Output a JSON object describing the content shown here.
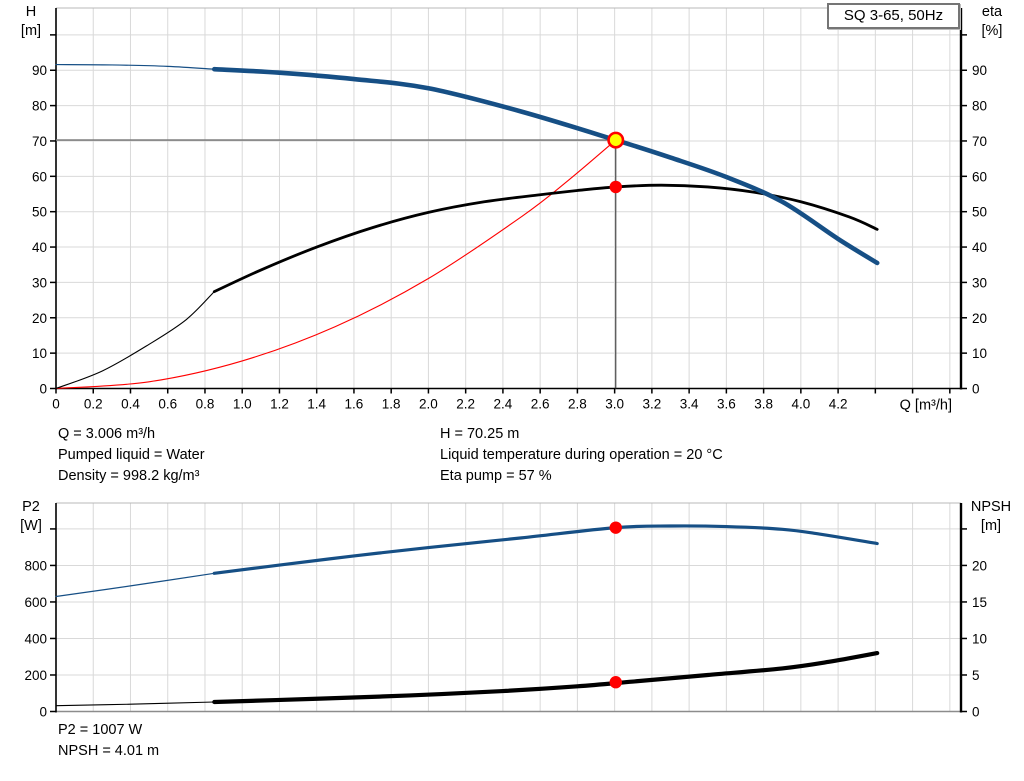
{
  "badge": {
    "label": "SQ 3-65, 50Hz"
  },
  "info_top": {
    "col1": [
      "Q = 3.006 m³/h",
      "Pumped liquid = Water",
      "Density = 998.2 kg/m³"
    ],
    "col2": [
      "H = 70.25 m",
      "Liquid temperature during operation = 20 °C",
      "Eta pump = 57 %"
    ]
  },
  "info_bottom": [
    "P2 = 1007 W",
    "NPSH = 4.01 m"
  ],
  "colors": {
    "curve_blue": "#164f85",
    "curve_black": "#000000",
    "system_red": "#ff0000",
    "marker_red": "#ff0000",
    "marker_yellow": "#ffff00",
    "grid": "#d9d9d9",
    "frame_top": "#b8b8b8",
    "axis": "#000000",
    "bottom_axis_gray": "#8c8c8c",
    "guide_h": "#808080",
    "guide_v": "#3a3a3a"
  },
  "chart_data": [
    {
      "id": "qh-eta-chart",
      "type": "line",
      "x_axis": {
        "label": "Q [m³/h]",
        "min": 0,
        "max": 4.86,
        "tick_step": 0.2,
        "show_ticks": true,
        "tick_labels": [
          "0",
          "0.2",
          "0.4",
          "0.6",
          "0.8",
          "1.0",
          "1.2",
          "1.4",
          "1.6",
          "1.8",
          "2.0",
          "2.2",
          "2.4",
          "2.6",
          "2.8",
          "3.0",
          "3.2",
          "3.4",
          "3.6",
          "3.8",
          "4.0",
          "4.2"
        ]
      },
      "left_axis": {
        "label_line1": "H",
        "label_line2": "[m]",
        "min": 0,
        "max": 107.6,
        "tick_step": 10,
        "ticks_to": 100,
        "tick_labels": [
          "0",
          "10",
          "20",
          "30",
          "40",
          "50",
          "60",
          "70",
          "80",
          "90"
        ]
      },
      "right_axis": {
        "label_line1": "eta",
        "label_line2": "[%]",
        "tick_step": 10,
        "ticks_to": 100,
        "scale": 1,
        "tick_labels": [
          "0",
          "10",
          "20",
          "30",
          "40",
          "50",
          "60",
          "70",
          "80",
          "90"
        ]
      },
      "series": [
        {
          "name": "system-curve",
          "axis": "left",
          "color": "#ff0000",
          "w_thin": 1.1,
          "w_thick": 1.1,
          "thin": [
            [
              0,
              0
            ],
            [
              0.5,
              1.9
            ],
            [
              1.0,
              7.8
            ],
            [
              1.5,
              17.5
            ],
            [
              2.0,
              31.1
            ],
            [
              2.5,
              48.6
            ],
            [
              2.75,
              58.8
            ],
            [
              3.006,
              70.25
            ]
          ],
          "thick": []
        },
        {
          "name": "eta-curve",
          "axis": "right",
          "color": "#000000",
          "w_thin": 1.1,
          "w_thick": 2.8,
          "thin": [
            [
              0,
              0
            ],
            [
              0.25,
              5
            ],
            [
              0.5,
              12.5
            ],
            [
              0.7,
              19.5
            ],
            [
              0.85,
              27.4
            ]
          ],
          "thick": [
            [
              0.85,
              27.4
            ],
            [
              1.1,
              33.5
            ],
            [
              1.4,
              40
            ],
            [
              1.7,
              45.5
            ],
            [
              2.0,
              49.8
            ],
            [
              2.3,
              52.8
            ],
            [
              2.6,
              54.8
            ],
            [
              2.8,
              56
            ],
            [
              3.006,
              57
            ],
            [
              3.25,
              57.5
            ],
            [
              3.5,
              57
            ],
            [
              3.75,
              55.5
            ],
            [
              4.0,
              52.8
            ],
            [
              4.26,
              48.5
            ],
            [
              4.41,
              45
            ]
          ]
        },
        {
          "name": "h-curve",
          "axis": "left",
          "color": "#164f85",
          "w_thin": 1.2,
          "w_thick": 4.6,
          "thin": [
            [
              0,
              91.6
            ],
            [
              0.3,
              91.5
            ],
            [
              0.6,
              91.1
            ],
            [
              0.85,
              90.3
            ]
          ],
          "thick": [
            [
              0.85,
              90.3
            ],
            [
              1.2,
              89.3
            ],
            [
              1.6,
              87.5
            ],
            [
              2.0,
              84.9
            ],
            [
              2.5,
              78.3
            ],
            [
              3.006,
              70.25
            ],
            [
              3.3,
              65.3
            ],
            [
              3.6,
              59.8
            ],
            [
              3.9,
              52.8
            ],
            [
              4.2,
              42.3
            ],
            [
              4.41,
              35.5
            ]
          ]
        }
      ],
      "guides": {
        "h_line": {
          "y": 70.25,
          "x_to": 3.006
        },
        "v_line": {
          "x": 3.006,
          "y_to": 70.25
        }
      },
      "markers": [
        {
          "name": "eta-point",
          "x": 3.006,
          "y": 57,
          "axis": "right",
          "style": "dot"
        },
        {
          "name": "duty-point",
          "x": 3.006,
          "y": 70.25,
          "axis": "left",
          "style": "ring"
        }
      ]
    },
    {
      "id": "p2-npsh-chart",
      "type": "line",
      "x_axis": {
        "label": "",
        "min": 0,
        "max": 4.86,
        "tick_step": 0.2,
        "show_ticks": false,
        "tick_labels": []
      },
      "left_axis": {
        "label_line1": "P2",
        "label_line2": "[W]",
        "min": 0,
        "max": 1142,
        "tick_step": 200,
        "ticks_to": 1000,
        "tick_labels": [
          "0",
          "200",
          "400",
          "600",
          "800"
        ]
      },
      "right_axis": {
        "label_line1": "NPSH",
        "label_line2": "[m]",
        "tick_step": 5,
        "ticks_to": 25,
        "scale": 40,
        "tick_labels": [
          "0",
          "5",
          "10",
          "15",
          "20"
        ]
      },
      "series": [
        {
          "name": "p2-curve",
          "axis": "left",
          "color": "#164f85",
          "w_thin": 1.2,
          "w_thick": 3.2,
          "thin": [
            [
              0,
              630
            ],
            [
              0.4,
              688
            ],
            [
              0.85,
              757
            ]
          ],
          "thick": [
            [
              0.85,
              757
            ],
            [
              1.2,
              802
            ],
            [
              1.6,
              852
            ],
            [
              2.0,
              898
            ],
            [
              2.5,
              951
            ],
            [
              3.006,
              1007
            ],
            [
              3.3,
              1016
            ],
            [
              3.6,
              1013
            ],
            [
              3.9,
              998
            ],
            [
              4.1,
              972
            ],
            [
              4.41,
              920
            ]
          ]
        },
        {
          "name": "npsh-curve",
          "axis": "right",
          "color": "#000000",
          "w_thin": 1.1,
          "w_thick": 4.2,
          "thin": [
            [
              0,
              0.8
            ],
            [
              0.4,
              1.0
            ],
            [
              0.85,
              1.3
            ]
          ],
          "thick": [
            [
              0.85,
              1.3
            ],
            [
              1.4,
              1.75
            ],
            [
              1.9,
              2.2
            ],
            [
              2.4,
              2.8
            ],
            [
              2.8,
              3.45
            ],
            [
              3.1,
              4.1
            ],
            [
              3.5,
              5.0
            ],
            [
              3.9,
              5.9
            ],
            [
              4.15,
              6.8
            ],
            [
              4.41,
              8.0
            ]
          ]
        }
      ],
      "guides": null,
      "markers": [
        {
          "name": "p2-point",
          "x": 3.006,
          "y": 1007,
          "axis": "left",
          "style": "dot"
        },
        {
          "name": "npsh-point",
          "x": 3.006,
          "y": 4.01,
          "axis": "right",
          "style": "dot"
        }
      ]
    }
  ]
}
